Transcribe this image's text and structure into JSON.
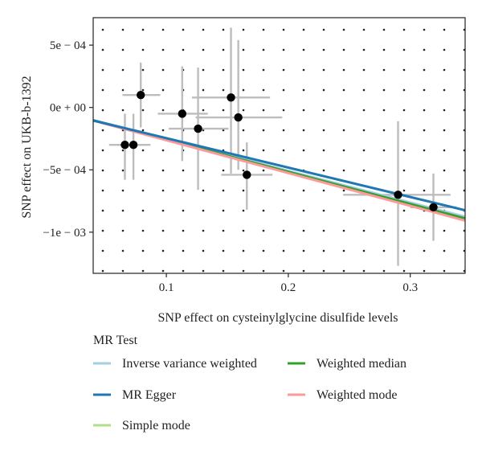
{
  "chart_data": {
    "type": "scatter",
    "title": "",
    "xlabel": "SNP effect on cysteinylglycine disulfide levels",
    "ylabel": "SNP effect on UKB-b-1392",
    "xlim": [
      0.04,
      0.345
    ],
    "ylim": [
      -0.00133,
      0.00072
    ],
    "x_ticks": [
      {
        "value": 0.1,
        "label": "0.1"
      },
      {
        "value": 0.2,
        "label": "0.2"
      },
      {
        "value": 0.3,
        "label": "0.3"
      }
    ],
    "y_ticks": [
      {
        "value": 0.0005,
        "label": "5e − 04"
      },
      {
        "value": 0.0,
        "label": "0e + 00"
      },
      {
        "value": -0.0005,
        "label": "−5e − 04"
      },
      {
        "value": -0.001,
        "label": "−1e − 03"
      }
    ],
    "grid": "dotted",
    "points": [
      {
        "x": 0.066,
        "y": -0.0003,
        "x_lo": 0.053,
        "x_hi": 0.081,
        "y_lo": -0.00058,
        "y_hi": -5e-05
      },
      {
        "x": 0.073,
        "y": -0.0003,
        "x_lo": 0.06,
        "x_hi": 0.087,
        "y_lo": -0.00058,
        "y_hi": -5e-05
      },
      {
        "x": 0.079,
        "y": 0.0001,
        "x_lo": 0.064,
        "x_hi": 0.095,
        "y_lo": -0.00016,
        "y_hi": 0.00036
      },
      {
        "x": 0.113,
        "y": -5e-05,
        "x_lo": 0.093,
        "x_hi": 0.134,
        "y_lo": -0.00043,
        "y_hi": 0.00033
      },
      {
        "x": 0.126,
        "y": -0.00017,
        "x_lo": 0.102,
        "x_hi": 0.151,
        "y_lo": -0.00066,
        "y_hi": 0.00032
      },
      {
        "x": 0.153,
        "y": 8e-05,
        "x_lo": 0.121,
        "x_hi": 0.185,
        "y_lo": -0.00053,
        "y_hi": 0.00064
      },
      {
        "x": 0.159,
        "y": -8e-05,
        "x_lo": 0.124,
        "x_hi": 0.195,
        "y_lo": -0.0005,
        "y_hi": 0.00054
      },
      {
        "x": 0.166,
        "y": -0.00054,
        "x_lo": 0.145,
        "x_hi": 0.187,
        "y_lo": -0.00082,
        "y_hi": -0.00028
      },
      {
        "x": 0.29,
        "y": -0.0007,
        "x_lo": 0.245,
        "x_hi": 0.333,
        "y_lo": -0.00127,
        "y_hi": -0.00011
      },
      {
        "x": 0.319,
        "y": -0.0008,
        "x_lo": 0.3,
        "x_hi": 0.338,
        "y_lo": -0.00107,
        "y_hi": -0.00053
      }
    ],
    "series": [
      {
        "name": "Inverse variance weighted",
        "color": "#a6cee3",
        "slope": -0.00254,
        "intercept": 0.0
      },
      {
        "name": "MR Egger",
        "color": "#1f78b4",
        "slope": -0.00236,
        "intercept": -1e-05
      },
      {
        "name": "Simple mode",
        "color": "#b2df8a",
        "slope": -0.0026,
        "intercept": 0.0
      },
      {
        "name": "Weighted median",
        "color": "#33a02c",
        "slope": -0.00258,
        "intercept": 0.0
      },
      {
        "name": "Weighted mode",
        "color": "#fb9a99",
        "slope": -0.00263,
        "intercept": 0.0
      }
    ],
    "legend": {
      "title": "MR Test",
      "position": "bottom"
    }
  },
  "colors": {
    "point": "#000000",
    "errorbar": "#bdbdbd",
    "grid": "#222222",
    "axis": "#222222"
  }
}
